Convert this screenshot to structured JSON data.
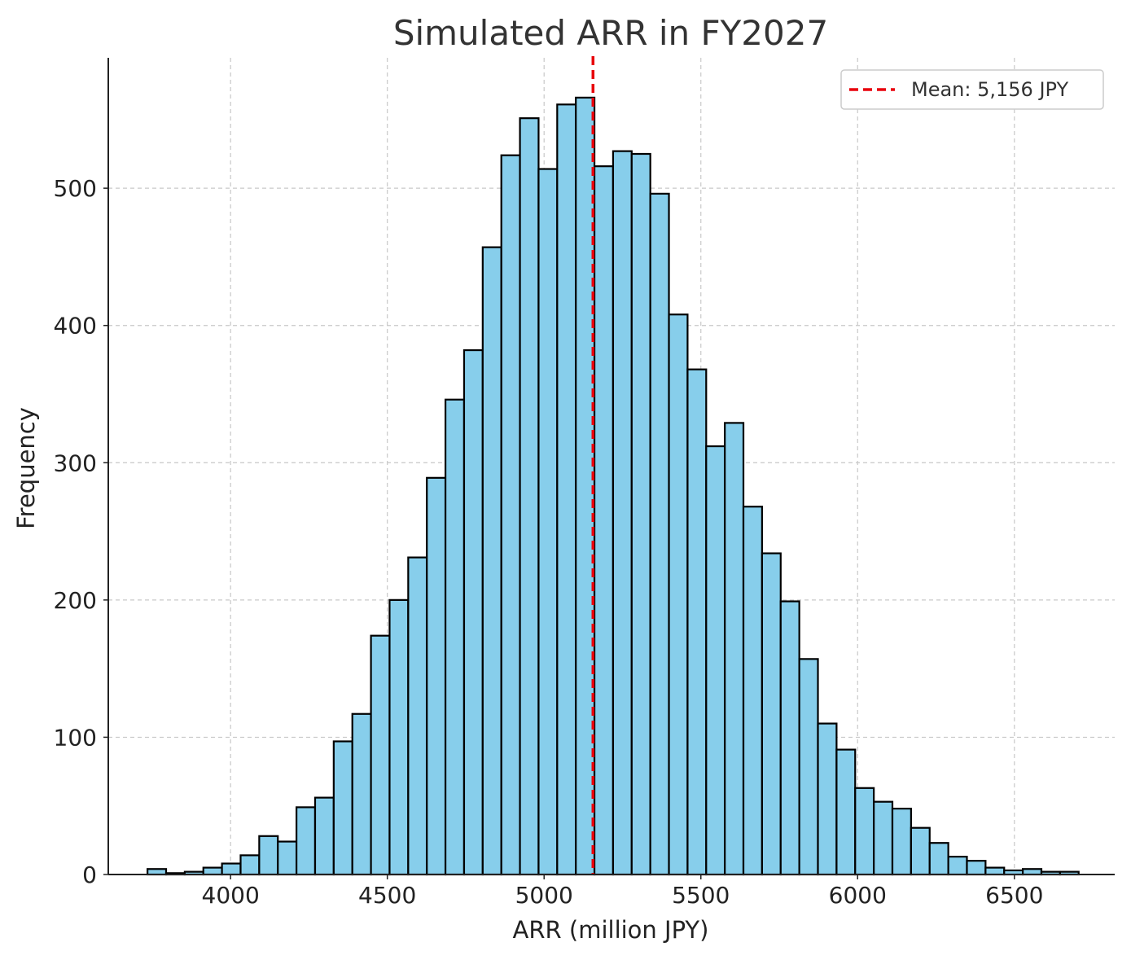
{
  "chart_data": {
    "type": "bar",
    "title": "Simulated ARR in FY2027",
    "xlabel": "ARR (million JPY)",
    "ylabel": "Frequency",
    "xlim": [
      3610,
      6820
    ],
    "ylim": [
      0,
      595
    ],
    "xticks": [
      4000,
      4500,
      5000,
      5500,
      6000,
      6500
    ],
    "yticks": [
      0,
      100,
      200,
      300,
      400,
      500
    ],
    "grid": true,
    "bin_start": 3735,
    "bin_width": 59.4,
    "values": [
      4,
      1,
      2,
      5,
      8,
      14,
      28,
      24,
      49,
      56,
      97,
      117,
      174,
      200,
      231,
      289,
      346,
      382,
      457,
      524,
      551,
      514,
      561,
      566,
      516,
      527,
      525,
      496,
      408,
      368,
      312,
      329,
      268,
      234,
      199,
      157,
      110,
      91,
      63,
      53,
      48,
      34,
      23,
      13,
      10,
      5,
      3,
      4,
      2,
      2
    ],
    "mean": 5156,
    "legend": {
      "position": "upper right",
      "label": "Mean: 5,156 JPY"
    },
    "colors": {
      "bar_fill": "#87ceeb",
      "bar_edge": "#000000",
      "mean_line": "#e8000b",
      "grid": "#c8c8c8"
    }
  }
}
